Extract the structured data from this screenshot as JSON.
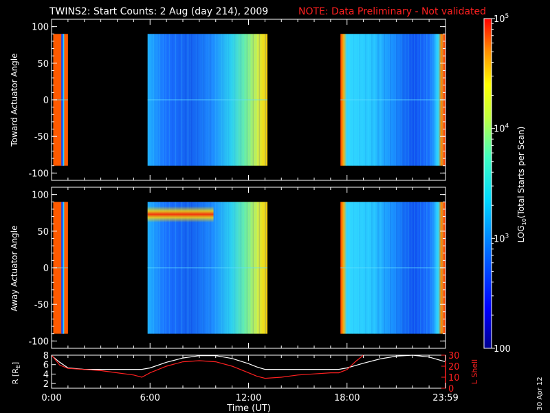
{
  "title": {
    "main": "TWINS2: Start Counts:  2 Aug (day 214), 2009",
    "note": "NOTE: Data Preliminary - Not validated"
  },
  "date_stamp": "30 Apr 12",
  "colors": {
    "background": "#000000",
    "axis": "#ffffff",
    "note": "#ff2020",
    "r_line": "#ffffff",
    "lshell_line": "#ff2020"
  },
  "colorbar": {
    "label": "LOG10(Total Starts per Scan)",
    "label_parts": [
      "LOG",
      "10",
      "(Total Starts per Scan)"
    ],
    "tick_labels": [
      {
        "base": "10",
        "exp": "5",
        "value": 100000
      },
      {
        "base": "10",
        "exp": "4",
        "value": 10000
      },
      {
        "base": "10",
        "exp": "3",
        "value": 1000
      },
      {
        "base": "100",
        "exp": "",
        "value": 100
      }
    ],
    "scale": "log",
    "range": [
      100,
      100000
    ]
  },
  "chart_data": [
    {
      "type": "heatmap",
      "panel": "toward",
      "ylabel": "Toward Actuator Angle",
      "ylim": [
        -110,
        110
      ],
      "xlim": [
        0,
        24
      ],
      "yticks": [
        100,
        50,
        0,
        -50,
        -100
      ],
      "ytick_labels": [
        "100",
        "50",
        "0",
        "-50",
        "-100"
      ],
      "angle_range": [
        -90,
        90
      ],
      "data_intervals": [
        {
          "start_ut": 0.1,
          "end_ut": 1.0,
          "level": "high (orange/red)",
          "log10_counts": 4.8
        },
        {
          "start_ut": 5.85,
          "end_ut": 13.15,
          "level": "low to moderate (blue-cyan, rising to yellow near end)",
          "log10_counts": 3.0
        },
        {
          "start_ut": 17.6,
          "end_ut": 24.0,
          "level": "moderate (cyan, red/orange at start and end)",
          "log10_counts": 3.1
        }
      ]
    },
    {
      "type": "heatmap",
      "panel": "away",
      "ylabel": "Away Actuator Angle",
      "ylim": [
        -110,
        110
      ],
      "xlim": [
        0,
        24
      ],
      "yticks": [
        100,
        50,
        0,
        -50,
        -100
      ],
      "ytick_labels": [
        "100",
        "50",
        "0",
        "-50",
        "-100"
      ],
      "angle_range": [
        -90,
        90
      ],
      "data_intervals": [
        {
          "start_ut": 0.1,
          "end_ut": 1.0,
          "level": "high (orange/red)",
          "log10_counts": 4.8
        },
        {
          "start_ut": 5.85,
          "end_ut": 13.15,
          "level": "low to moderate with yellow/red band near 75 deg",
          "log10_counts": 3.0
        },
        {
          "start_ut": 17.6,
          "end_ut": 24.0,
          "level": "moderate (cyan), red/orange at start",
          "log10_counts": 3.1
        }
      ]
    },
    {
      "type": "line",
      "panel": "orbit",
      "ylabel_left": "R [RE]",
      "ylabel_left_parts": [
        "R [R",
        "E",
        "]"
      ],
      "ylabel_right": "L Shell",
      "xlim": [
        0,
        24
      ],
      "ylim_left": [
        1,
        8
      ],
      "ylim_right": [
        0,
        30
      ],
      "yticks_left": [
        8,
        6,
        4,
        2
      ],
      "ytick_labels_left": [
        "8",
        "6",
        "4",
        "2"
      ],
      "yticks_right": [
        30,
        20,
        10,
        0
      ],
      "ytick_labels_right": [
        "30",
        "20",
        "10",
        "0"
      ],
      "xlabel": "Time (UT)",
      "xticks": [
        0,
        6,
        12,
        18,
        24
      ],
      "xtick_labels": [
        "0:00",
        "6:00",
        "12:00",
        "18:00",
        "23:59"
      ],
      "series": [
        {
          "name": "R",
          "axis": "left",
          "x": [
            0,
            0.5,
            1,
            2,
            3,
            4,
            5,
            5.5,
            6,
            7,
            8,
            9,
            10,
            11,
            12,
            12.5,
            13,
            14,
            15,
            16,
            17,
            17.5,
            18,
            19,
            20,
            21,
            22,
            23,
            24
          ],
          "y": [
            7.9,
            6.5,
            5.3,
            5.0,
            5.0,
            5.0,
            5.0,
            5.0,
            5.3,
            6.5,
            7.4,
            7.9,
            7.9,
            7.3,
            6.2,
            5.5,
            5.0,
            5.0,
            5.0,
            5.0,
            5.0,
            5.0,
            5.3,
            6.3,
            7.2,
            7.8,
            8.0,
            7.6,
            6.6
          ]
        },
        {
          "name": "L Shell",
          "axis": "right",
          "x": [
            0,
            0.5,
            1,
            2,
            3,
            4,
            5,
            5.5,
            6,
            7,
            8,
            9,
            10,
            11,
            12,
            12.5,
            13,
            14,
            15,
            16,
            17,
            17.5,
            18,
            18.5,
            19
          ],
          "y": [
            30,
            21,
            18,
            17,
            16,
            14,
            12,
            10,
            14,
            20,
            24,
            25,
            24,
            20,
            14,
            11,
            9,
            10,
            12,
            13,
            14,
            14,
            17,
            24,
            32
          ]
        }
      ]
    }
  ]
}
